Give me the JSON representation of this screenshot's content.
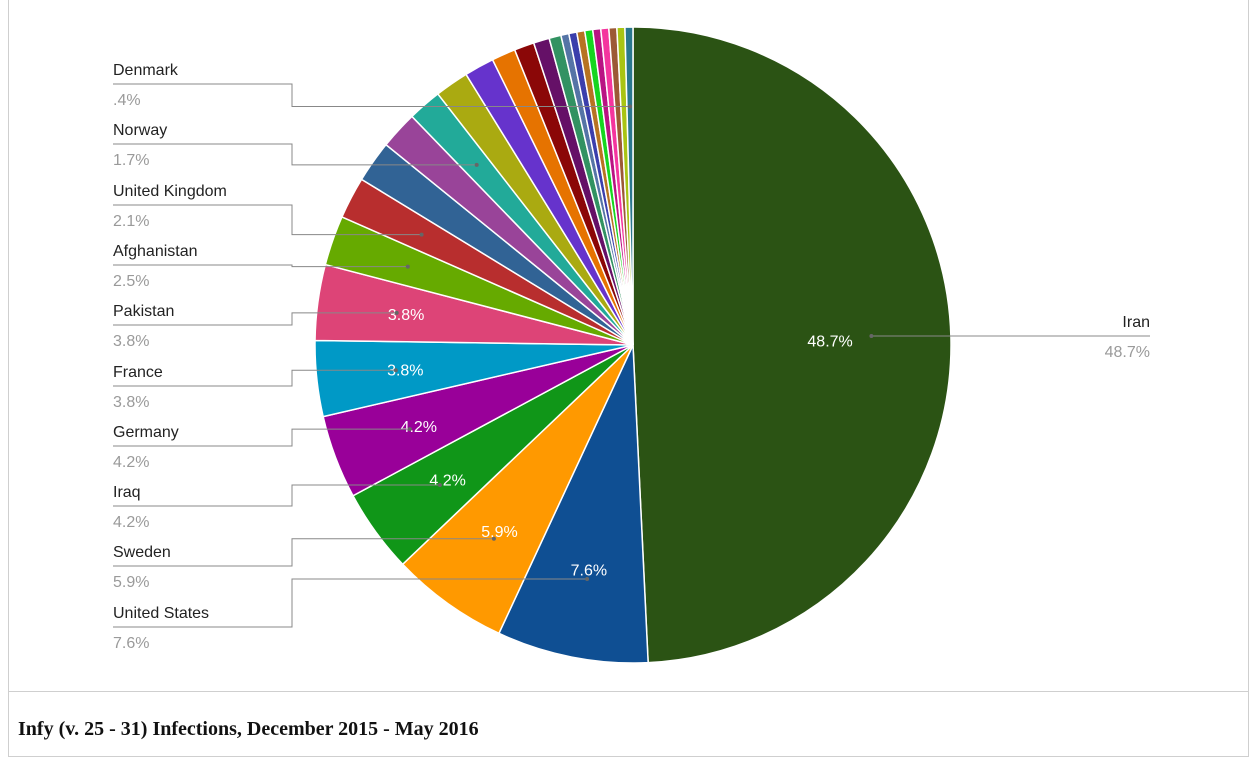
{
  "caption": "Infy (v. 25 - 31) Infections, December 2015 - May 2016",
  "chart_data": {
    "type": "pie",
    "title": "",
    "slices": [
      {
        "label": "Iran",
        "value": 48.7,
        "label_text": "48.7%",
        "color": "#2b5314",
        "inner_label": "48.7%"
      },
      {
        "label": "United States",
        "value": 7.6,
        "label_text": "7.6%",
        "color": "#0f4f93",
        "inner_label": "7.6%"
      },
      {
        "label": "Sweden",
        "value": 5.9,
        "label_text": "5.9%",
        "color": "#ff9900",
        "inner_label": "5.9%"
      },
      {
        "label": "Iraq",
        "value": 4.2,
        "label_text": "4.2%",
        "color": "#109618",
        "inner_label": "4.2%"
      },
      {
        "label": "Germany",
        "value": 4.2,
        "label_text": "4.2%",
        "color": "#990099",
        "inner_label": "4.2%"
      },
      {
        "label": "France",
        "value": 3.8,
        "label_text": "3.8%",
        "color": "#0099c6",
        "inner_label": "3.8%"
      },
      {
        "label": "Pakistan",
        "value": 3.8,
        "label_text": "3.8%",
        "color": "#dd4477",
        "inner_label": "3.8%"
      },
      {
        "label": "Afghanistan",
        "value": 2.5,
        "label_text": "2.5%",
        "color": "#66aa00",
        "inner_label": ""
      },
      {
        "label": "United Kingdom",
        "value": 2.1,
        "label_text": "2.1%",
        "color": "#b82e2e",
        "inner_label": ""
      },
      {
        "label": "",
        "value": 2.1,
        "label_text": "",
        "color": "#316395",
        "inner_label": ""
      },
      {
        "label": "",
        "value": 1.9,
        "label_text": "",
        "color": "#994499",
        "inner_label": ""
      },
      {
        "label": "Norway",
        "value": 1.7,
        "label_text": "1.7%",
        "color": "#22aa99",
        "inner_label": ""
      },
      {
        "label": "",
        "value": 1.7,
        "label_text": "",
        "color": "#aaaa11",
        "inner_label": ""
      },
      {
        "label": "",
        "value": 1.5,
        "label_text": "",
        "color": "#6633cc",
        "inner_label": ""
      },
      {
        "label": "",
        "value": 1.2,
        "label_text": "",
        "color": "#e67300",
        "inner_label": ""
      },
      {
        "label": "",
        "value": 1.0,
        "label_text": "",
        "color": "#8b0707",
        "inner_label": ""
      },
      {
        "label": "",
        "value": 0.8,
        "label_text": "",
        "color": "#651067",
        "inner_label": ""
      },
      {
        "label": "",
        "value": 0.6,
        "label_text": "",
        "color": "#329262",
        "inner_label": ""
      },
      {
        "label": "",
        "value": 0.4,
        "label_text": "",
        "color": "#5574a6",
        "inner_label": ""
      },
      {
        "label": "",
        "value": 0.4,
        "label_text": "",
        "color": "#3b3eac",
        "inner_label": ""
      },
      {
        "label": "",
        "value": 0.4,
        "label_text": "",
        "color": "#b77322",
        "inner_label": ""
      },
      {
        "label": "",
        "value": 0.4,
        "label_text": "",
        "color": "#16d620",
        "inner_label": ""
      },
      {
        "label": "",
        "value": 0.4,
        "label_text": "",
        "color": "#b91383",
        "inner_label": ""
      },
      {
        "label": "",
        "value": 0.4,
        "label_text": "",
        "color": "#f4359e",
        "inner_label": ""
      },
      {
        "label": "",
        "value": 0.4,
        "label_text": "",
        "color": "#9c5935",
        "inner_label": ""
      },
      {
        "label": "",
        "value": 0.4,
        "label_text": "",
        "color": "#a9c413",
        "inner_label": ""
      },
      {
        "label": "Denmark",
        "value": 0.4,
        "label_text": ".4%",
        "color": "#2a778d",
        "inner_label": ""
      }
    ]
  }
}
